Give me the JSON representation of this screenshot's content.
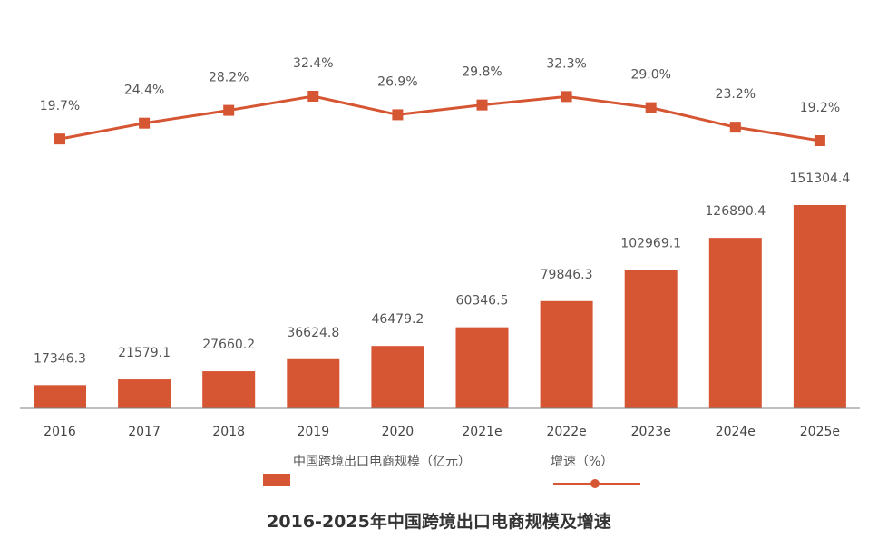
{
  "chart_data": {
    "type": "bar+line",
    "title": "2016-2025年中国跨境出口电商规模及增速",
    "categories": [
      "2016",
      "2017",
      "2018",
      "2019",
      "2020",
      "2021e",
      "2022e",
      "2023e",
      "2024e",
      "2025e"
    ],
    "series": [
      {
        "name": "中国跨境出口电商规模（亿元）",
        "type": "bar",
        "values": [
          17346.3,
          21579.1,
          27660.2,
          36624.8,
          46479.2,
          60346.5,
          79846.3,
          102969.1,
          126890.4,
          151304.4
        ],
        "labels": [
          "17346.3",
          "21579.1",
          "27660.2",
          "36624.8",
          "46479.2",
          "60346.5",
          "79846.3",
          "102969.1",
          "126890.4",
          "151304.4"
        ]
      },
      {
        "name": "增速（%）",
        "type": "line",
        "values": [
          19.7,
          24.4,
          28.2,
          32.4,
          26.9,
          29.8,
          32.3,
          29.0,
          23.2,
          19.2
        ],
        "labels": [
          "19.7%",
          "24.4%",
          "28.2%",
          "32.4%",
          "26.9%",
          "29.8%",
          "32.3%",
          "29.0%",
          "23.2%",
          "19.2%"
        ]
      }
    ],
    "colors": {
      "bar": "#d65634",
      "line": "#d65634",
      "axis": "#7f7f7f"
    },
    "legend": [
      "中国跨境出口电商规模（亿元）",
      "增速（%）"
    ],
    "legend_position": "bottom"
  }
}
